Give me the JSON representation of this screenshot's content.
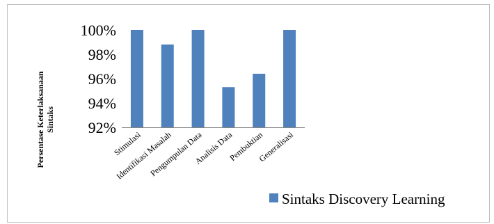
{
  "chart_data": {
    "type": "bar",
    "categories": [
      "Stimulasi",
      "Identifikasi Masalah",
      "Pengumpulan Data",
      "Analisis Data",
      "Pembuktian",
      "Generalisasi"
    ],
    "series": [
      {
        "name": "Sintaks Discovery Learning",
        "values": [
          100,
          98.8,
          100,
          95.3,
          96.4,
          100
        ],
        "color": "#4f81bd"
      }
    ],
    "ylabel_lines": [
      "Persentase Keterlaksanaan",
      "Sintaks"
    ],
    "ylim": [
      92,
      100
    ],
    "yticks": [
      92,
      94,
      96,
      98,
      100
    ],
    "ytick_labels": [
      "92%",
      "94%",
      "96%",
      "98%",
      "100%"
    ],
    "grid": false,
    "legend_position": "bottom-right"
  }
}
